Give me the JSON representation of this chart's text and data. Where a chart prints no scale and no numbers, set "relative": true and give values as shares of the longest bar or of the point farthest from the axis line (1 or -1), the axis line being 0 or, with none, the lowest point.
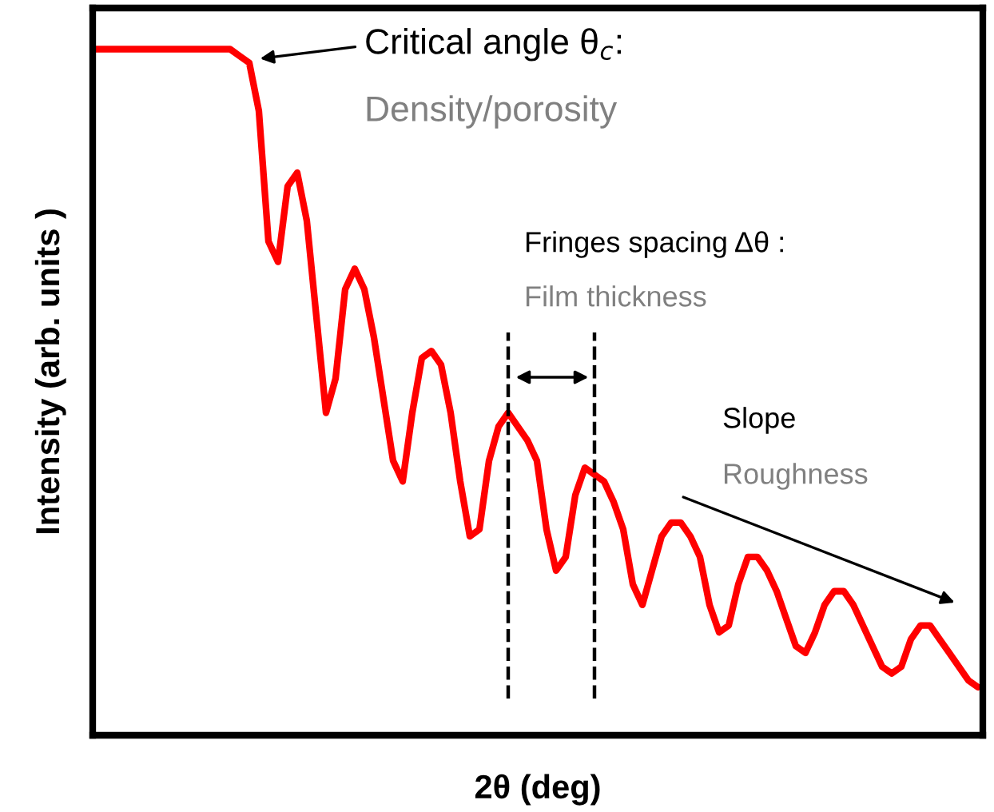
{
  "chart_data": {
    "type": "line",
    "relative": true,
    "xlabel": "2θ (deg)",
    "ylabel": "Intensity (arb. units )",
    "categories": [
      null,
      null,
      null,
      null,
      null,
      null,
      null,
      null,
      null,
      null,
      null,
      null,
      null,
      null,
      null,
      null,
      null,
      null,
      null,
      null,
      null,
      null,
      null,
      null,
      null,
      null,
      null,
      null,
      null,
      null,
      null,
      null,
      null,
      null,
      null,
      null,
      null,
      null,
      null,
      null,
      null,
      null,
      null,
      null,
      null,
      null,
      null,
      null,
      null,
      null,
      null,
      null,
      null,
      null,
      null,
      null,
      null,
      null,
      null,
      null,
      null,
      null,
      null,
      null,
      null,
      null,
      null,
      null,
      null,
      null,
      null,
      null,
      null,
      null,
      null,
      null,
      null,
      null,
      null,
      null,
      null,
      null,
      null,
      null,
      null,
      null,
      null,
      null,
      null,
      null,
      null,
      null,
      null
    ],
    "series": [
      {
        "color": "#ff0000",
        "values": [
          1.0,
          1.0,
          1.0,
          1.0,
          1.0,
          1.0,
          1.0,
          1.0,
          1.0,
          1.0,
          1.0,
          1.0,
          1.0,
          1.0,
          1.0,
          0.99,
          0.98,
          0.91,
          0.72,
          0.69,
          0.8,
          0.82,
          0.75,
          0.61,
          0.47,
          0.52,
          0.65,
          0.68,
          0.65,
          0.58,
          0.49,
          0.4,
          0.37,
          0.47,
          0.55,
          0.56,
          0.54,
          0.47,
          0.37,
          0.29,
          0.3,
          0.4,
          0.45,
          0.47,
          0.45,
          0.43,
          0.4,
          0.3,
          0.24,
          0.26,
          0.35,
          0.39,
          0.38,
          0.37,
          0.34,
          0.3,
          0.22,
          0.19,
          0.24,
          0.29,
          0.31,
          0.31,
          0.29,
          0.26,
          0.19,
          0.15,
          0.16,
          0.22,
          0.26,
          0.26,
          0.24,
          0.21,
          0.17,
          0.13,
          0.12,
          0.15,
          0.19,
          0.21,
          0.21,
          0.19,
          0.16,
          0.13,
          0.1,
          0.09,
          0.1,
          0.14,
          0.16,
          0.16,
          0.14,
          0.12,
          0.1,
          0.08,
          0.07
        ]
      }
    ],
    "marker": "none",
    "line_style": "solid",
    "grid": false,
    "legend": false,
    "annotations": [
      "Critical angle θ$_{c}$:",
      "Density/porosity",
      "Fringes spacing Δθ :",
      "Film thickness",
      "Slope",
      "Roughness"
    ]
  }
}
